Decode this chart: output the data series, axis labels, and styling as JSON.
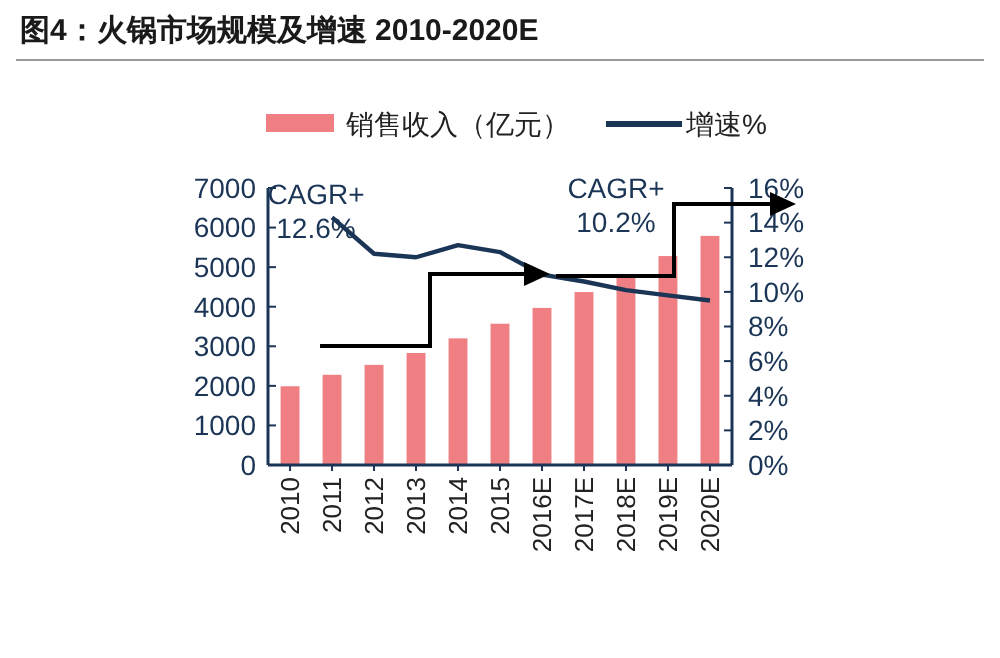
{
  "chart_data": {
    "type": "bar",
    "title": "图4：火锅市场规模及增速 2010-2020E",
    "categories": [
      "2010",
      "2011",
      "2012",
      "2013",
      "2014",
      "2015",
      "2016E",
      "2017E",
      "2018E",
      "2019E",
      "2020E"
    ],
    "series": [
      {
        "name": "销售收入（亿元）",
        "color": "#ef7f82",
        "values": [
          1990,
          2280,
          2530,
          2830,
          3200,
          3570,
          3970,
          4370,
          4810,
          5280,
          5790
        ]
      },
      {
        "name": "增速%",
        "color": "#1b3556",
        "type": "line",
        "axis": "y2",
        "values": [
          null,
          14.3,
          12.2,
          12.0,
          12.7,
          12.3,
          11.0,
          10.6,
          10.1,
          9.8,
          9.5
        ]
      }
    ],
    "ylim": [
      0,
      7000
    ],
    "yticks": [
      0,
      1000,
      2000,
      3000,
      4000,
      5000,
      6000,
      7000
    ],
    "y2lim": [
      0,
      16
    ],
    "y2ticks": [
      {
        "value": 0,
        "label": "0%"
      },
      {
        "value": 2,
        "label": "2%"
      },
      {
        "value": 4,
        "label": "4%"
      },
      {
        "value": 6,
        "label": "6%"
      },
      {
        "value": 8,
        "label": "8%"
      },
      {
        "value": 10,
        "label": "10%"
      },
      {
        "value": 12,
        "label": "12%"
      },
      {
        "value": 14,
        "label": "14%"
      },
      {
        "value": 16,
        "label": "16%"
      }
    ],
    "legend": "top",
    "marker": "none",
    "grid": false,
    "annotations": [
      "CAGR+ 12.6%",
      "CAGR+ 10.2%"
    ]
  }
}
